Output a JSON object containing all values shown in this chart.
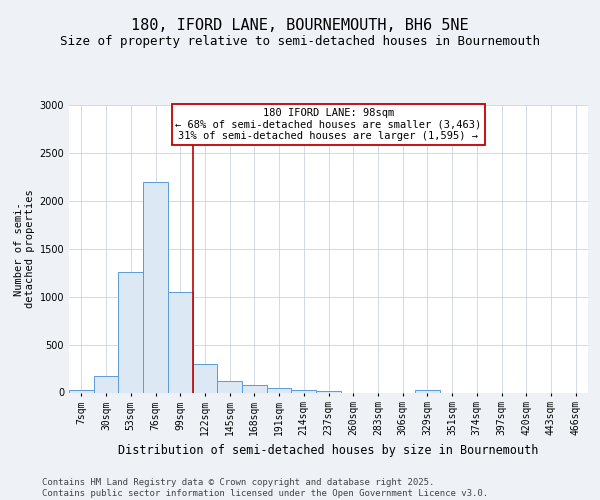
{
  "title": "180, IFORD LANE, BOURNEMOUTH, BH6 5NE",
  "subtitle": "Size of property relative to semi-detached houses in Bournemouth",
  "xlabel": "Distribution of semi-detached houses by size in Bournemouth",
  "ylabel": "Number of semi-\ndetached properties",
  "categories": [
    "7sqm",
    "30sqm",
    "53sqm",
    "76sqm",
    "99sqm",
    "122sqm",
    "145sqm",
    "168sqm",
    "191sqm",
    "214sqm",
    "237sqm",
    "260sqm",
    "283sqm",
    "306sqm",
    "329sqm",
    "351sqm",
    "374sqm",
    "397sqm",
    "420sqm",
    "443sqm",
    "466sqm"
  ],
  "values": [
    25,
    175,
    1260,
    2200,
    1050,
    300,
    125,
    75,
    50,
    25,
    20,
    0,
    0,
    0,
    25,
    0,
    0,
    0,
    0,
    0,
    0
  ],
  "bar_color": "#dce9f5",
  "bar_edge_color": "#5b9bd5",
  "vline_x": 4,
  "vline_color": "#c00000",
  "annotation_line1": "180 IFORD LANE: 98sqm",
  "annotation_line2": "← 68% of semi-detached houses are smaller (3,463)",
  "annotation_line3": "31% of semi-detached houses are larger (1,595) →",
  "annotation_box_color": "#ffffff",
  "annotation_box_edge_color": "#c00000",
  "footer": "Contains HM Land Registry data © Crown copyright and database right 2025.\nContains public sector information licensed under the Open Government Licence v3.0.",
  "ylim": [
    0,
    3000
  ],
  "yticks": [
    0,
    500,
    1000,
    1500,
    2000,
    2500,
    3000
  ],
  "background_color": "#eef2f7",
  "plot_background": "#ffffff",
  "title_fontsize": 11,
  "subtitle_fontsize": 9,
  "footer_fontsize": 6.5,
  "tick_fontsize": 7,
  "ylabel_fontsize": 7.5,
  "xlabel_fontsize": 8.5,
  "annotation_fontsize": 7.5
}
